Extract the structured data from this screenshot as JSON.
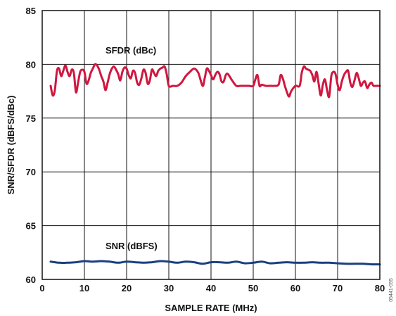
{
  "chart_data": {
    "type": "line",
    "xlabel": "SAMPLE RATE (MHz)",
    "ylabel": "SNR/SFDR (dBFS/dBc)",
    "xlim": [
      0,
      80
    ],
    "ylim": [
      60,
      85
    ],
    "xticks": [
      0,
      10,
      20,
      30,
      40,
      50,
      60,
      70,
      80
    ],
    "yticks": [
      60,
      65,
      70,
      75,
      80,
      85
    ],
    "grid": true,
    "figure_id": "05441-055",
    "series": [
      {
        "name": "SFDR (dBc)",
        "color": "#d0173f",
        "x": [
          2,
          2.5,
          3,
          3.5,
          4,
          4.5,
          5,
          5.5,
          6,
          6.5,
          7,
          7.5,
          8,
          8.5,
          9,
          9.5,
          10,
          10.5,
          11,
          11.5,
          12,
          12.5,
          13,
          13.5,
          14,
          14.5,
          15,
          15.5,
          16,
          16.5,
          17,
          17.5,
          18,
          18.5,
          19,
          19.5,
          20,
          20.5,
          21,
          21.5,
          22,
          22.5,
          23,
          23.5,
          24,
          24.5,
          25,
          25.5,
          26,
          26.5,
          27,
          27.5,
          28,
          28.5,
          29,
          29.5,
          30,
          31,
          32,
          33,
          34,
          35,
          36,
          37,
          38,
          38.5,
          39,
          39.5,
          40,
          40.5,
          41,
          41.5,
          42,
          42.5,
          43,
          43.5,
          44,
          45,
          46,
          47,
          48,
          49,
          50,
          50.5,
          51,
          51.5,
          52,
          53,
          54,
          55,
          56,
          56.5,
          57,
          57.5,
          58,
          58.5,
          59,
          60,
          61,
          61.5,
          62,
          62.5,
          63,
          63.5,
          64,
          64.5,
          65,
          65.5,
          66,
          66.5,
          67,
          67.5,
          68,
          68.5,
          69,
          69.5,
          70,
          70.5,
          71,
          71.5,
          72,
          72.5,
          73,
          73.5,
          74,
          74.5,
          75,
          75.5,
          76,
          76.5,
          77,
          77.5,
          78,
          78.5,
          79,
          80
        ],
        "y": [
          78.0,
          77.1,
          77.6,
          79.4,
          79.6,
          78.9,
          79.4,
          79.9,
          79.3,
          78.9,
          79.5,
          79.2,
          77.4,
          78.3,
          79.3,
          79.5,
          79.3,
          78.2,
          78.5,
          79.2,
          79.6,
          80.0,
          79.9,
          79.5,
          78.9,
          78.4,
          77.6,
          78.3,
          79.1,
          79.6,
          79.8,
          79.5,
          79.1,
          78.5,
          79.3,
          79.7,
          79.6,
          79.0,
          78.7,
          79.4,
          79.2,
          78.3,
          78.1,
          78.7,
          79.5,
          79.2,
          78.2,
          78.5,
          79.5,
          79.2,
          78.9,
          79.4,
          79.6,
          79.7,
          79.8,
          79.1,
          78.0,
          78.0,
          78.0,
          78.3,
          78.9,
          79.3,
          79.6,
          79.2,
          78.0,
          78.7,
          79.6,
          79.4,
          79.0,
          78.6,
          79.0,
          79.3,
          79.1,
          78.4,
          78.4,
          79.0,
          79.1,
          78.5,
          78.0,
          78.0,
          78.0,
          78.0,
          78.0,
          78.6,
          79.0,
          78.0,
          78.1,
          78.0,
          78.0,
          78.0,
          78.1,
          79.0,
          78.7,
          78.0,
          77.4,
          77.0,
          77.5,
          78.0,
          78.0,
          79.2,
          79.8,
          79.6,
          79.5,
          79.4,
          79.0,
          78.4,
          79.3,
          78.2,
          77.1,
          78.1,
          78.6,
          77.6,
          77.0,
          78.9,
          79.3,
          79.1,
          78.1,
          77.6,
          78.4,
          79.0,
          79.3,
          79.4,
          78.3,
          77.9,
          78.5,
          79.2,
          78.7,
          78.0,
          78.3,
          78.4,
          77.8,
          78.1,
          78.3,
          78.0,
          78.0,
          78.0
        ],
        "label_position": [
          15,
          81.0
        ]
      },
      {
        "name": "SNR (dBFS)",
        "color": "#1a3f80",
        "x": [
          2,
          4,
          6,
          8,
          10,
          12,
          14,
          16,
          18,
          20,
          22,
          24,
          26,
          28,
          30,
          32,
          34,
          36,
          38,
          40,
          42,
          44,
          46,
          48,
          50,
          52,
          54,
          56,
          58,
          60,
          62,
          64,
          66,
          68,
          70,
          72,
          74,
          76,
          78,
          80
        ],
        "y": [
          61.65,
          61.55,
          61.55,
          61.6,
          61.7,
          61.65,
          61.7,
          61.65,
          61.55,
          61.65,
          61.6,
          61.55,
          61.6,
          61.7,
          61.65,
          61.55,
          61.65,
          61.6,
          61.45,
          61.6,
          61.6,
          61.55,
          61.65,
          61.5,
          61.55,
          61.65,
          61.5,
          61.55,
          61.6,
          61.55,
          61.55,
          61.6,
          61.55,
          61.55,
          61.5,
          61.45,
          61.45,
          61.45,
          61.4,
          61.4
        ],
        "label_position": [
          15,
          62.8
        ]
      }
    ]
  }
}
